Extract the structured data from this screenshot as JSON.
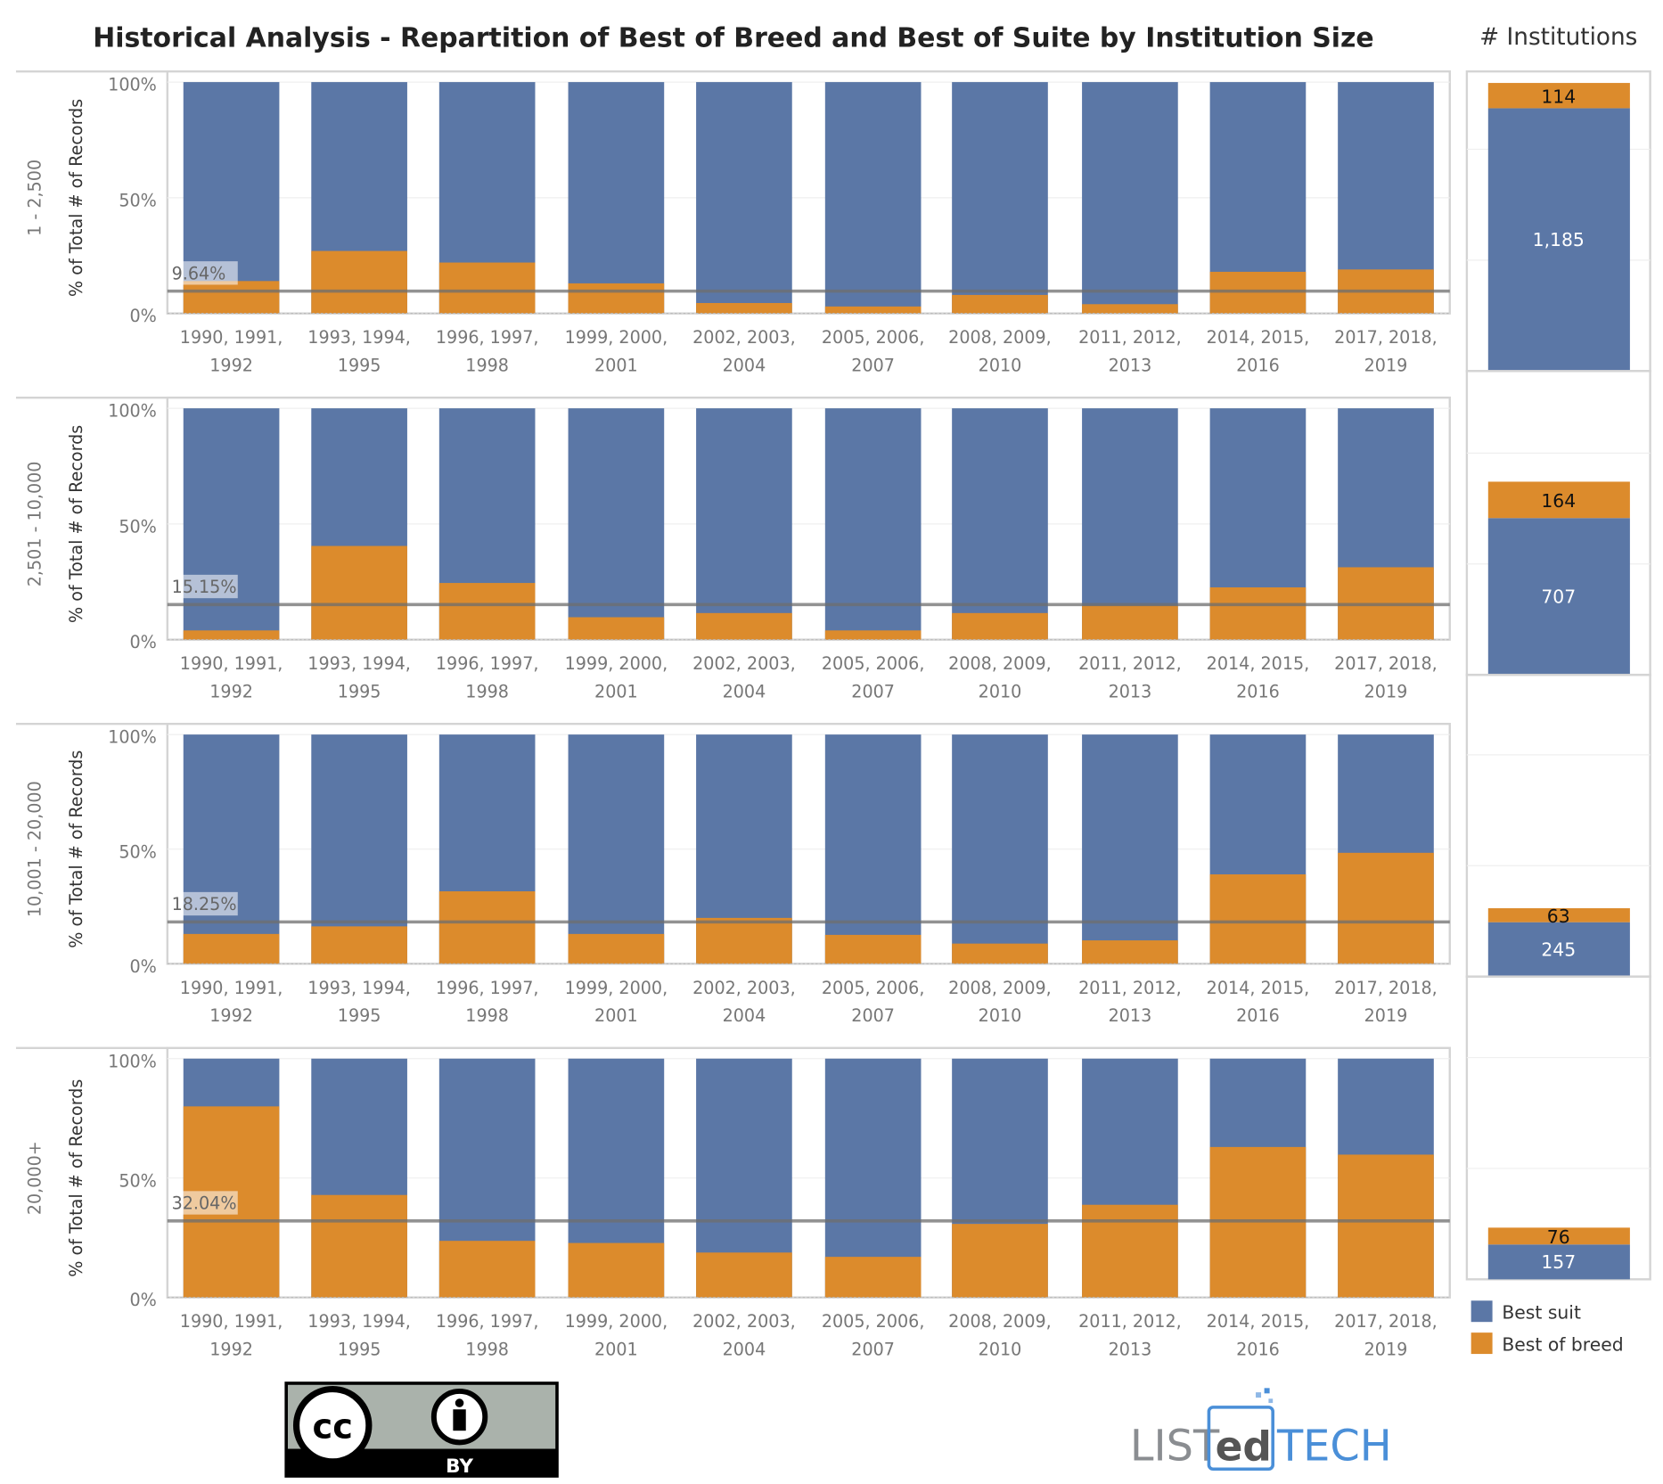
{
  "title": "Historical Analysis - Repartition of Best of Breed and Best of Suite by Institution Size",
  "side_title": "# Institutions",
  "colors": {
    "best_suit": "#5b77a6",
    "best_of_breed": "#dc8b2c",
    "reference_line": "#6e6e6e"
  },
  "legend": [
    {
      "label": "Best suit",
      "color": "#5b77a6"
    },
    {
      "label": "Best of breed",
      "color": "#dc8b2c"
    }
  ],
  "logos": {
    "cc": "CC BY",
    "cc_by_text": "BY",
    "listedtech": "LISTedTECH"
  },
  "chart_data": [
    {
      "type": "bar",
      "stacked": "100%",
      "ylabel": "% of Total # of Records",
      "yticks": [
        "100%",
        "50%",
        "0%"
      ],
      "ylim": [
        0,
        100
      ],
      "categories": [
        "1990, 1991,|1992",
        "1993, 1994,|1995",
        "1996, 1997,|1998",
        "1999, 2000,|2001",
        "2002, 2003,|2004",
        "2005, 2006,|2007",
        "2008, 2009,|2010",
        "2011, 2012,|2013",
        "2014, 2015,|2016",
        "2017, 2018,|2019"
      ],
      "category_labels": [
        [
          "1990, 1991,",
          "1992"
        ],
        [
          "1993, 1994,",
          "1995"
        ],
        [
          "1996, 1997,",
          "1998"
        ],
        [
          "1999, 2000,",
          "2001"
        ],
        [
          "2002, 2003,",
          "2004"
        ],
        [
          "2005, 2006,",
          "2007"
        ],
        [
          "2008, 2009,",
          "2010"
        ],
        [
          "2011, 2012,",
          "2013"
        ],
        [
          "2014, 2015,",
          "2016"
        ],
        [
          "2017, 2018,",
          "2019"
        ]
      ],
      "panels": [
        {
          "row_label": "1 - 2,500",
          "reference_label": "9.64%",
          "reference": 9.64,
          "best_of_breed": [
            14,
            27,
            22,
            13,
            4.5,
            3,
            8,
            4,
            18,
            19
          ],
          "institutions": {
            "best_suit": 1185,
            "best_of_breed": 114
          }
        },
        {
          "row_label": "2,501 - 10,000",
          "reference_label": "15.15%",
          "reference": 15.15,
          "best_of_breed": [
            4,
            40.5,
            24.5,
            9.7,
            11.5,
            4,
            11.5,
            14.7,
            22.6,
            31.3
          ],
          "institutions": {
            "best_suit": 707,
            "best_of_breed": 164
          }
        },
        {
          "row_label": "10,001 - 20,000",
          "reference_label": "18.25%",
          "reference": 18.25,
          "best_of_breed": [
            13,
            16.3,
            31.6,
            13,
            20,
            12.6,
            8.8,
            10.2,
            39,
            48.4
          ],
          "institutions": {
            "best_suit": 245,
            "best_of_breed": 63
          }
        },
        {
          "row_label": "20,000+",
          "reference_label": "32.04%",
          "reference": 32.04,
          "best_of_breed": [
            80,
            42.9,
            23.7,
            22.8,
            18.8,
            17,
            30.8,
            38.8,
            63,
            59.8
          ],
          "institutions": {
            "best_suit": 157,
            "best_of_breed": 76
          }
        }
      ]
    }
  ]
}
